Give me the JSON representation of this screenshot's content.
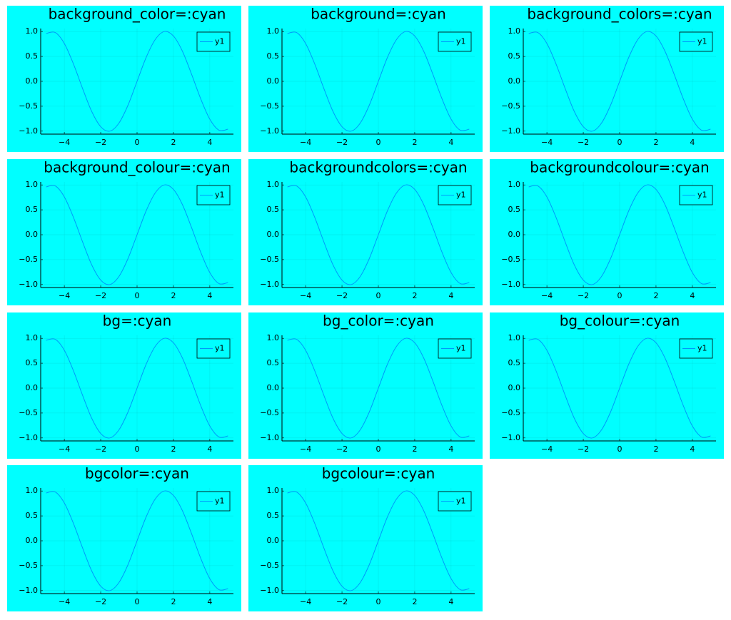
{
  "chart_data": [
    {
      "type": "line",
      "title": "background_color=:cyan",
      "background": "#00ffff",
      "x": [
        -5,
        -4.5,
        -4,
        -3.5,
        -3,
        -2.5,
        -2,
        -1.5,
        -1,
        -0.5,
        0,
        0.5,
        1,
        1.5,
        2,
        2.5,
        3,
        3.5,
        4,
        4.5,
        5
      ],
      "series": [
        {
          "name": "y1",
          "color": "#009af9",
          "values": [
            0.96,
            0.98,
            0.76,
            0.35,
            -0.14,
            -0.6,
            -0.91,
            -1,
            -0.84,
            -0.48,
            0,
            0.48,
            0.84,
            1,
            0.91,
            0.6,
            0.14,
            -0.35,
            -0.76,
            -0.98,
            -0.96
          ]
        }
      ],
      "xlim": [
        -5.3,
        5.3
      ],
      "ylim": [
        -1.06,
        1.06
      ],
      "xticks": [
        {
          "value": -4,
          "label": "−4"
        },
        {
          "value": -2,
          "label": "−2"
        },
        0,
        2,
        4
      ],
      "yticks": [
        {
          "value": -1,
          "label": "−1.0"
        },
        {
          "value": -0.5,
          "label": "−0.5"
        },
        {
          "value": 0,
          "label": "0.0"
        },
        0.5,
        {
          "value": 1,
          "label": "1.0"
        }
      ],
      "grid": true,
      "legend": "topright"
    },
    {
      "type": "line",
      "title": "background=:cyan",
      "background": "#00ffff",
      "x": [
        -5,
        -4.5,
        -4,
        -3.5,
        -3,
        -2.5,
        -2,
        -1.5,
        -1,
        -0.5,
        0,
        0.5,
        1,
        1.5,
        2,
        2.5,
        3,
        3.5,
        4,
        4.5,
        5
      ],
      "series": [
        {
          "name": "y1",
          "color": "#009af9",
          "values": [
            0.96,
            0.98,
            0.76,
            0.35,
            -0.14,
            -0.6,
            -0.91,
            -1,
            -0.84,
            -0.48,
            0,
            0.48,
            0.84,
            1,
            0.91,
            0.6,
            0.14,
            -0.35,
            -0.76,
            -0.98,
            -0.96
          ]
        }
      ],
      "xlim": [
        -5.3,
        5.3
      ],
      "ylim": [
        -1.06,
        1.06
      ],
      "xticks": [
        {
          "value": -4,
          "label": "−4"
        },
        {
          "value": -2,
          "label": "−2"
        },
        0,
        2,
        4
      ],
      "yticks": [
        {
          "value": -1,
          "label": "−1.0"
        },
        {
          "value": -0.5,
          "label": "−0.5"
        },
        {
          "value": 0,
          "label": "0.0"
        },
        0.5,
        {
          "value": 1,
          "label": "1.0"
        }
      ],
      "grid": true,
      "legend": "topright"
    },
    {
      "type": "line",
      "title": "background_colors=:cyan",
      "background": "#00ffff",
      "x": [
        -5,
        -4.5,
        -4,
        -3.5,
        -3,
        -2.5,
        -2,
        -1.5,
        -1,
        -0.5,
        0,
        0.5,
        1,
        1.5,
        2,
        2.5,
        3,
        3.5,
        4,
        4.5,
        5
      ],
      "series": [
        {
          "name": "y1",
          "color": "#009af9",
          "values": [
            0.96,
            0.98,
            0.76,
            0.35,
            -0.14,
            -0.6,
            -0.91,
            -1,
            -0.84,
            -0.48,
            0,
            0.48,
            0.84,
            1,
            0.91,
            0.6,
            0.14,
            -0.35,
            -0.76,
            -0.98,
            -0.96
          ]
        }
      ],
      "xlim": [
        -5.3,
        5.3
      ],
      "ylim": [
        -1.06,
        1.06
      ],
      "xticks": [
        {
          "value": -4,
          "label": "−4"
        },
        {
          "value": -2,
          "label": "−2"
        },
        0,
        2,
        4
      ],
      "yticks": [
        {
          "value": -1,
          "label": "−1.0"
        },
        {
          "value": -0.5,
          "label": "−0.5"
        },
        {
          "value": 0,
          "label": "0.0"
        },
        0.5,
        {
          "value": 1,
          "label": "1.0"
        }
      ],
      "grid": true,
      "legend": "topright"
    },
    {
      "type": "line",
      "title": "background_colour=:cyan",
      "background": "#00ffff",
      "x": [
        -5,
        -4.5,
        -4,
        -3.5,
        -3,
        -2.5,
        -2,
        -1.5,
        -1,
        -0.5,
        0,
        0.5,
        1,
        1.5,
        2,
        2.5,
        3,
        3.5,
        4,
        4.5,
        5
      ],
      "series": [
        {
          "name": "y1",
          "color": "#009af9",
          "values": [
            0.96,
            0.98,
            0.76,
            0.35,
            -0.14,
            -0.6,
            -0.91,
            -1,
            -0.84,
            -0.48,
            0,
            0.48,
            0.84,
            1,
            0.91,
            0.6,
            0.14,
            -0.35,
            -0.76,
            -0.98,
            -0.96
          ]
        }
      ],
      "xlim": [
        -5.3,
        5.3
      ],
      "ylim": [
        -1.06,
        1.06
      ],
      "xticks": [
        {
          "value": -4,
          "label": "−4"
        },
        {
          "value": -2,
          "label": "−2"
        },
        0,
        2,
        4
      ],
      "yticks": [
        {
          "value": -1,
          "label": "−1.0"
        },
        {
          "value": -0.5,
          "label": "−0.5"
        },
        {
          "value": 0,
          "label": "0.0"
        },
        0.5,
        {
          "value": 1,
          "label": "1.0"
        }
      ],
      "grid": true,
      "legend": "topright"
    },
    {
      "type": "line",
      "title": "backgroundcolors=:cyan",
      "background": "#00ffff",
      "x": [
        -5,
        -4.5,
        -4,
        -3.5,
        -3,
        -2.5,
        -2,
        -1.5,
        -1,
        -0.5,
        0,
        0.5,
        1,
        1.5,
        2,
        2.5,
        3,
        3.5,
        4,
        4.5,
        5
      ],
      "series": [
        {
          "name": "y1",
          "color": "#009af9",
          "values": [
            0.96,
            0.98,
            0.76,
            0.35,
            -0.14,
            -0.6,
            -0.91,
            -1,
            -0.84,
            -0.48,
            0,
            0.48,
            0.84,
            1,
            0.91,
            0.6,
            0.14,
            -0.35,
            -0.76,
            -0.98,
            -0.96
          ]
        }
      ],
      "xlim": [
        -5.3,
        5.3
      ],
      "ylim": [
        -1.06,
        1.06
      ],
      "xticks": [
        {
          "value": -4,
          "label": "−4"
        },
        {
          "value": -2,
          "label": "−2"
        },
        0,
        2,
        4
      ],
      "yticks": [
        {
          "value": -1,
          "label": "−1.0"
        },
        {
          "value": -0.5,
          "label": "−0.5"
        },
        {
          "value": 0,
          "label": "0.0"
        },
        0.5,
        {
          "value": 1,
          "label": "1.0"
        }
      ],
      "grid": true,
      "legend": "topright"
    },
    {
      "type": "line",
      "title": "backgroundcolour=:cyan",
      "background": "#00ffff",
      "x": [
        -5,
        -4.5,
        -4,
        -3.5,
        -3,
        -2.5,
        -2,
        -1.5,
        -1,
        -0.5,
        0,
        0.5,
        1,
        1.5,
        2,
        2.5,
        3,
        3.5,
        4,
        4.5,
        5
      ],
      "series": [
        {
          "name": "y1",
          "color": "#009af9",
          "values": [
            0.96,
            0.98,
            0.76,
            0.35,
            -0.14,
            -0.6,
            -0.91,
            -1,
            -0.84,
            -0.48,
            0,
            0.48,
            0.84,
            1,
            0.91,
            0.6,
            0.14,
            -0.35,
            -0.76,
            -0.98,
            -0.96
          ]
        }
      ],
      "xlim": [
        -5.3,
        5.3
      ],
      "ylim": [
        -1.06,
        1.06
      ],
      "xticks": [
        {
          "value": -4,
          "label": "−4"
        },
        {
          "value": -2,
          "label": "−2"
        },
        0,
        2,
        4
      ],
      "yticks": [
        {
          "value": -1,
          "label": "−1.0"
        },
        {
          "value": -0.5,
          "label": "−0.5"
        },
        {
          "value": 0,
          "label": "0.0"
        },
        0.5,
        {
          "value": 1,
          "label": "1.0"
        }
      ],
      "grid": true,
      "legend": "topright"
    },
    {
      "type": "line",
      "title": "bg=:cyan",
      "background": "#00ffff",
      "x": [
        -5,
        -4.5,
        -4,
        -3.5,
        -3,
        -2.5,
        -2,
        -1.5,
        -1,
        -0.5,
        0,
        0.5,
        1,
        1.5,
        2,
        2.5,
        3,
        3.5,
        4,
        4.5,
        5
      ],
      "series": [
        {
          "name": "y1",
          "color": "#009af9",
          "values": [
            0.96,
            0.98,
            0.76,
            0.35,
            -0.14,
            -0.6,
            -0.91,
            -1,
            -0.84,
            -0.48,
            0,
            0.48,
            0.84,
            1,
            0.91,
            0.6,
            0.14,
            -0.35,
            -0.76,
            -0.98,
            -0.96
          ]
        }
      ],
      "xlim": [
        -5.3,
        5.3
      ],
      "ylim": [
        -1.06,
        1.06
      ],
      "xticks": [
        {
          "value": -4,
          "label": "−4"
        },
        {
          "value": -2,
          "label": "−2"
        },
        0,
        2,
        4
      ],
      "yticks": [
        {
          "value": -1,
          "label": "−1.0"
        },
        {
          "value": -0.5,
          "label": "−0.5"
        },
        {
          "value": 0,
          "label": "0.0"
        },
        0.5,
        {
          "value": 1,
          "label": "1.0"
        }
      ],
      "grid": true,
      "legend": "topright"
    },
    {
      "type": "line",
      "title": "bg_color=:cyan",
      "background": "#00ffff",
      "x": [
        -5,
        -4.5,
        -4,
        -3.5,
        -3,
        -2.5,
        -2,
        -1.5,
        -1,
        -0.5,
        0,
        0.5,
        1,
        1.5,
        2,
        2.5,
        3,
        3.5,
        4,
        4.5,
        5
      ],
      "series": [
        {
          "name": "y1",
          "color": "#009af9",
          "values": [
            0.96,
            0.98,
            0.76,
            0.35,
            -0.14,
            -0.6,
            -0.91,
            -1,
            -0.84,
            -0.48,
            0,
            0.48,
            0.84,
            1,
            0.91,
            0.6,
            0.14,
            -0.35,
            -0.76,
            -0.98,
            -0.96
          ]
        }
      ],
      "xlim": [
        -5.3,
        5.3
      ],
      "ylim": [
        -1.06,
        1.06
      ],
      "xticks": [
        {
          "value": -4,
          "label": "−4"
        },
        {
          "value": -2,
          "label": "−2"
        },
        0,
        2,
        4
      ],
      "yticks": [
        {
          "value": -1,
          "label": "−1.0"
        },
        {
          "value": -0.5,
          "label": "−0.5"
        },
        {
          "value": 0,
          "label": "0.0"
        },
        0.5,
        {
          "value": 1,
          "label": "1.0"
        }
      ],
      "grid": true,
      "legend": "topright"
    },
    {
      "type": "line",
      "title": "bg_colour=:cyan",
      "background": "#00ffff",
      "x": [
        -5,
        -4.5,
        -4,
        -3.5,
        -3,
        -2.5,
        -2,
        -1.5,
        -1,
        -0.5,
        0,
        0.5,
        1,
        1.5,
        2,
        2.5,
        3,
        3.5,
        4,
        4.5,
        5
      ],
      "series": [
        {
          "name": "y1",
          "color": "#009af9",
          "values": [
            0.96,
            0.98,
            0.76,
            0.35,
            -0.14,
            -0.6,
            -0.91,
            -1,
            -0.84,
            -0.48,
            0,
            0.48,
            0.84,
            1,
            0.91,
            0.6,
            0.14,
            -0.35,
            -0.76,
            -0.98,
            -0.96
          ]
        }
      ],
      "xlim": [
        -5.3,
        5.3
      ],
      "ylim": [
        -1.06,
        1.06
      ],
      "xticks": [
        {
          "value": -4,
          "label": "−4"
        },
        {
          "value": -2,
          "label": "−2"
        },
        0,
        2,
        4
      ],
      "yticks": [
        {
          "value": -1,
          "label": "−1.0"
        },
        {
          "value": -0.5,
          "label": "−0.5"
        },
        {
          "value": 0,
          "label": "0.0"
        },
        0.5,
        {
          "value": 1,
          "label": "1.0"
        }
      ],
      "grid": true,
      "legend": "topright"
    },
    {
      "type": "line",
      "title": "bgcolor=:cyan",
      "background": "#00ffff",
      "x": [
        -5,
        -4.5,
        -4,
        -3.5,
        -3,
        -2.5,
        -2,
        -1.5,
        -1,
        -0.5,
        0,
        0.5,
        1,
        1.5,
        2,
        2.5,
        3,
        3.5,
        4,
        4.5,
        5
      ],
      "series": [
        {
          "name": "y1",
          "color": "#009af9",
          "values": [
            0.96,
            0.98,
            0.76,
            0.35,
            -0.14,
            -0.6,
            -0.91,
            -1,
            -0.84,
            -0.48,
            0,
            0.48,
            0.84,
            1,
            0.91,
            0.6,
            0.14,
            -0.35,
            -0.76,
            -0.98,
            -0.96
          ]
        }
      ],
      "xlim": [
        -5.3,
        5.3
      ],
      "ylim": [
        -1.06,
        1.06
      ],
      "xticks": [
        {
          "value": -4,
          "label": "−4"
        },
        {
          "value": -2,
          "label": "−2"
        },
        0,
        2,
        4
      ],
      "yticks": [
        {
          "value": -1,
          "label": "−1.0"
        },
        {
          "value": -0.5,
          "label": "−0.5"
        },
        {
          "value": 0,
          "label": "0.0"
        },
        0.5,
        {
          "value": 1,
          "label": "1.0"
        }
      ],
      "grid": true,
      "legend": "topright"
    },
    {
      "type": "line",
      "title": "bgcolour=:cyan",
      "background": "#00ffff",
      "x": [
        -5,
        -4.5,
        -4,
        -3.5,
        -3,
        -2.5,
        -2,
        -1.5,
        -1,
        -0.5,
        0,
        0.5,
        1,
        1.5,
        2,
        2.5,
        3,
        3.5,
        4,
        4.5,
        5
      ],
      "series": [
        {
          "name": "y1",
          "color": "#009af9",
          "values": [
            0.96,
            0.98,
            0.76,
            0.35,
            -0.14,
            -0.6,
            -0.91,
            -1,
            -0.84,
            -0.48,
            0,
            0.48,
            0.84,
            1,
            0.91,
            0.6,
            0.14,
            -0.35,
            -0.76,
            -0.98,
            -0.96
          ]
        }
      ],
      "xlim": [
        -5.3,
        5.3
      ],
      "ylim": [
        -1.06,
        1.06
      ],
      "xticks": [
        {
          "value": -4,
          "label": "−4"
        },
        {
          "value": -2,
          "label": "−2"
        },
        0,
        2,
        4
      ],
      "yticks": [
        {
          "value": -1,
          "label": "−1.0"
        },
        {
          "value": -0.5,
          "label": "−0.5"
        },
        {
          "value": 0,
          "label": "0.0"
        },
        0.5,
        {
          "value": 1,
          "label": "1.0"
        }
      ],
      "grid": true,
      "legend": "topright"
    }
  ]
}
